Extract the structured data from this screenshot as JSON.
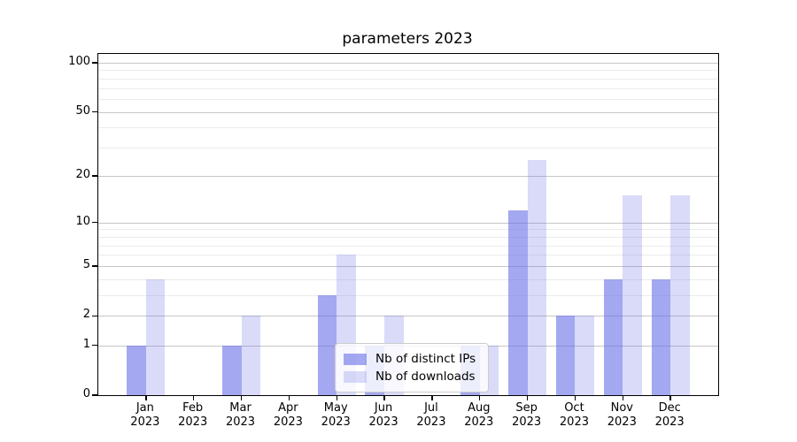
{
  "chart_data": {
    "type": "bar",
    "title": "parameters 2023",
    "categories": [
      {
        "label": "Jan",
        "sub": "2023"
      },
      {
        "label": "Feb",
        "sub": "2023"
      },
      {
        "label": "Mar",
        "sub": "2023"
      },
      {
        "label": "Apr",
        "sub": "2023"
      },
      {
        "label": "May",
        "sub": "2023"
      },
      {
        "label": "Jun",
        "sub": "2023"
      },
      {
        "label": "Jul",
        "sub": "2023"
      },
      {
        "label": "Aug",
        "sub": "2023"
      },
      {
        "label": "Sep",
        "sub": "2023"
      },
      {
        "label": "Oct",
        "sub": "2023"
      },
      {
        "label": "Nov",
        "sub": "2023"
      },
      {
        "label": "Dec",
        "sub": "2023"
      }
    ],
    "series": [
      {
        "name": "Nb of distinct IPs",
        "color": "rgba(103,110,230,0.6)",
        "values": [
          1,
          0,
          1,
          0,
          3,
          1,
          0,
          1,
          12,
          2,
          4,
          4
        ]
      },
      {
        "name": "Nb of downloads",
        "color": "rgba(103,110,230,0.25)",
        "values": [
          4,
          0,
          2,
          0,
          6,
          2,
          0,
          1,
          25,
          2,
          15,
          15
        ]
      }
    ],
    "y_scale": "log1p",
    "y_top": 113,
    "yticks_major": [
      0,
      1,
      2,
      5,
      10,
      20,
      50,
      100
    ],
    "yticks_minor": [
      3,
      4,
      6,
      7,
      8,
      9,
      30,
      40,
      60,
      70,
      80,
      90
    ],
    "xlabel": "",
    "ylabel": "",
    "grid": true,
    "legend_position": "lower center"
  }
}
